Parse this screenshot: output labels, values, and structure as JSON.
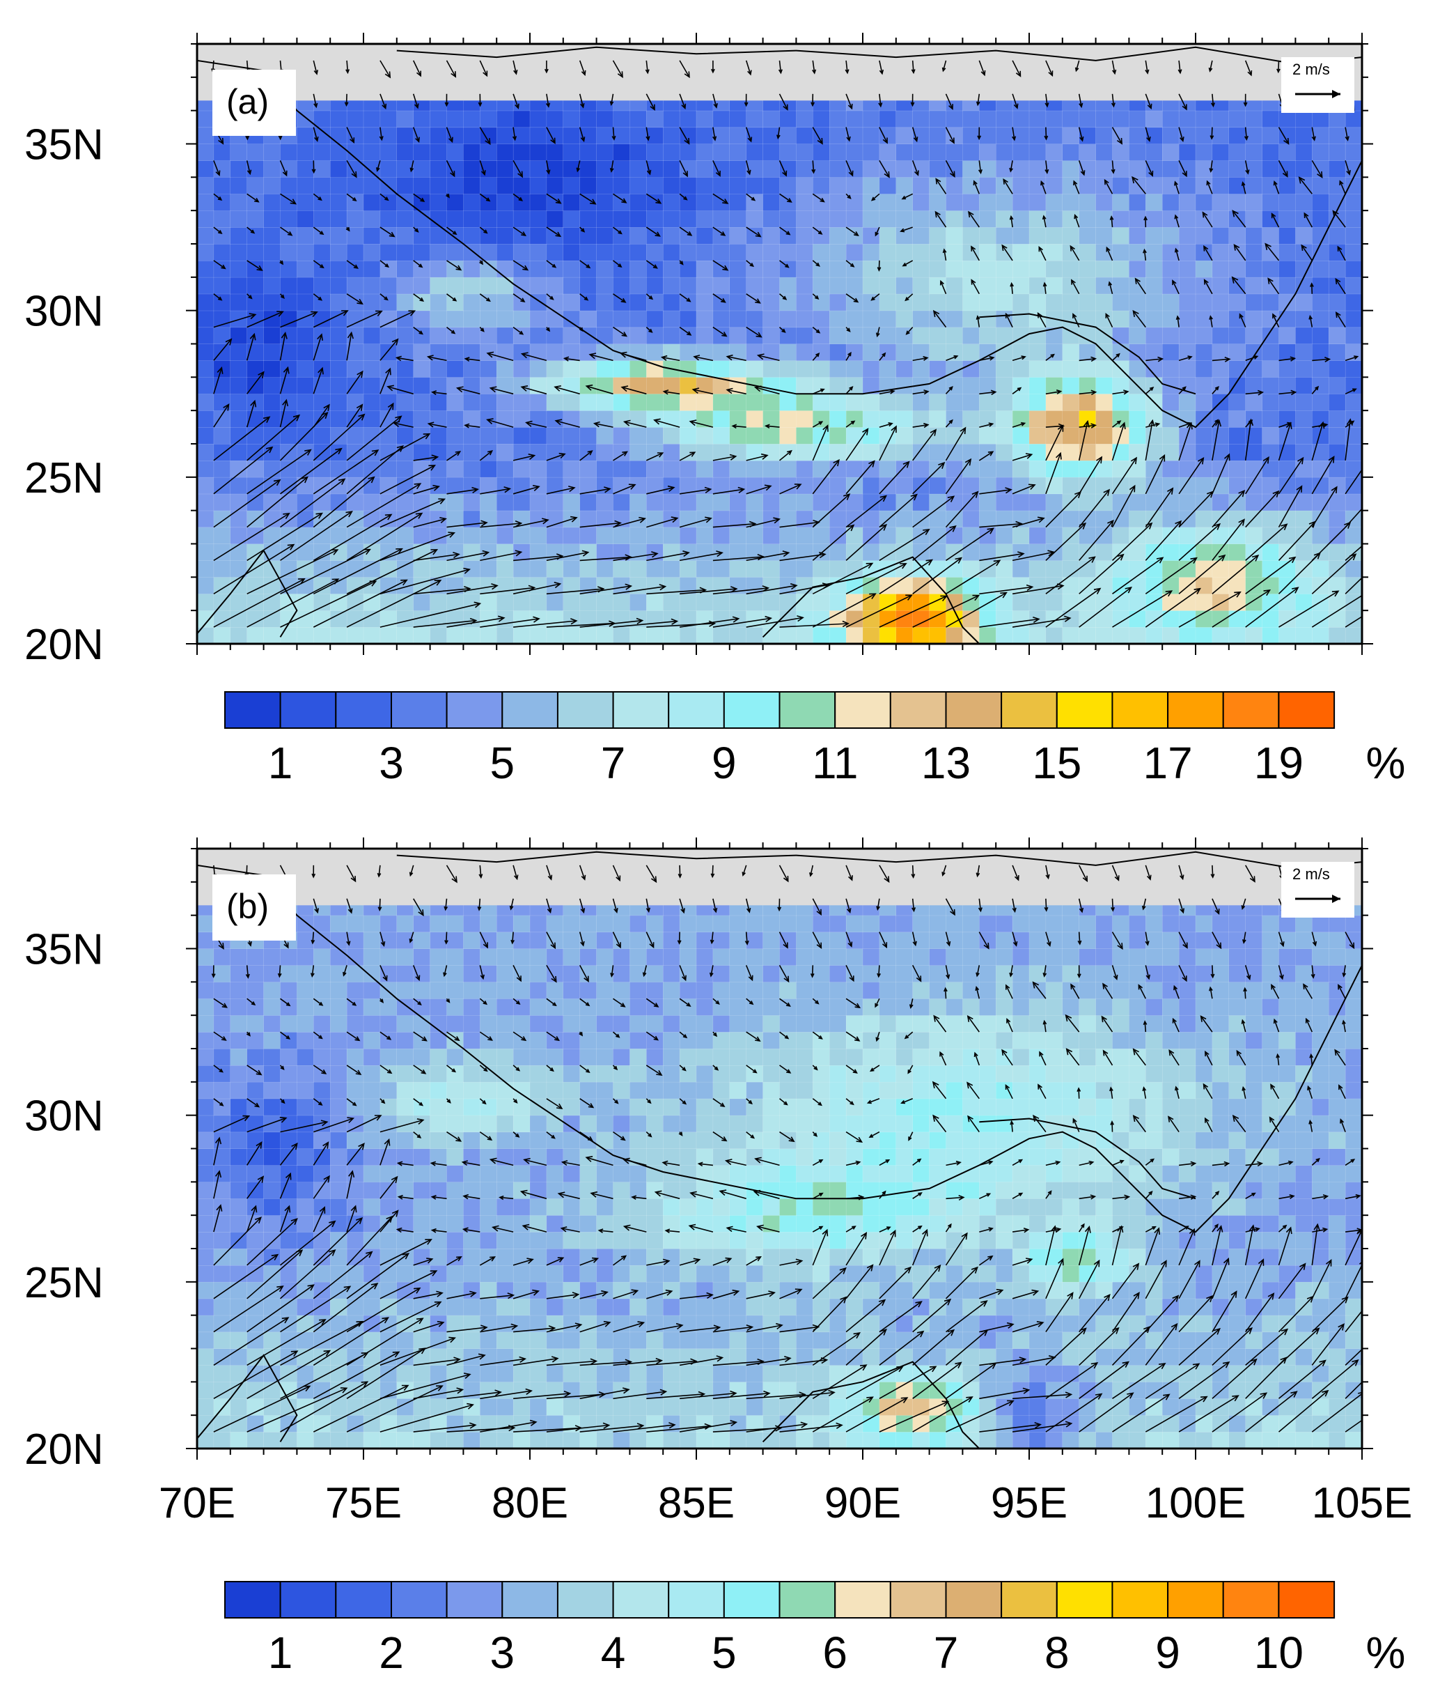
{
  "map": {
    "lon_range": [
      70,
      105
    ],
    "lat_range": [
      20,
      38
    ],
    "lat_ticks": [
      "35N",
      "30N",
      "25N",
      "20N"
    ],
    "lon_ticks": [
      "70E",
      "75E",
      "80E",
      "85E",
      "90E",
      "95E",
      "100E",
      "105E"
    ],
    "missing_color": "#dcdcdc",
    "coast_color": "#000000",
    "grid_color": "#ffffff",
    "reference_vector_label": "2 m/s"
  },
  "panels": [
    {
      "id": "a",
      "label": "(a)",
      "colorbar": {
        "labels": [
          "1",
          "3",
          "5",
          "7",
          "9",
          "11",
          "13",
          "15",
          "17",
          "19"
        ],
        "unit": "%",
        "colors": [
          "#1a3fd4",
          "#2d55e0",
          "#3e67e6",
          "#5a7fe9",
          "#7b99ec",
          "#8db8e6",
          "#a3d3e3",
          "#b3e6ec",
          "#a9eaf2",
          "#8ff0f6",
          "#8fd9b3",
          "#f5e3bd",
          "#e4c290",
          "#dcaf72",
          "#ebc040",
          "#ffe000",
          "#ffc000",
          "#ffa000",
          "#ff8410",
          "#ff6400"
        ],
        "range": [
          0,
          20
        ]
      }
    },
    {
      "id": "b",
      "label": "(b)",
      "colorbar": {
        "labels": [
          "1",
          "2",
          "3",
          "4",
          "5",
          "6",
          "7",
          "8",
          "9",
          "10"
        ],
        "unit": "%",
        "colors": [
          "#1a3fd4",
          "#2d55e0",
          "#3e67e6",
          "#5a7fe9",
          "#7b99ec",
          "#8db8e6",
          "#a3d3e3",
          "#b3e6ec",
          "#a9eaf2",
          "#8ff0f6",
          "#8fd9b3",
          "#f5e3bd",
          "#e4c290",
          "#dcaf72",
          "#ebc040",
          "#ffe000",
          "#ffc000",
          "#ffa000",
          "#ff8410",
          "#ff6400"
        ],
        "range": [
          0,
          10
        ]
      }
    }
  ]
}
